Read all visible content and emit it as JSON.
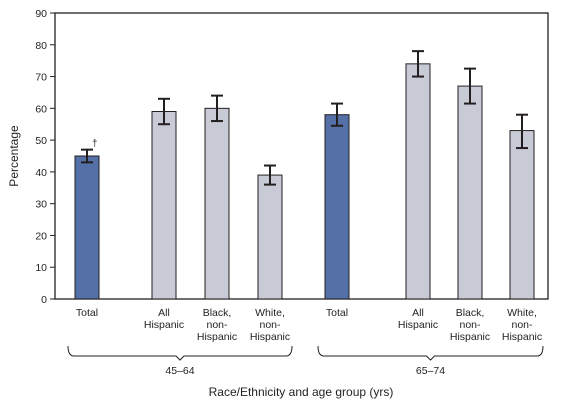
{
  "chart_data": {
    "type": "bar",
    "title": "",
    "xlabel": "Race/Ethnicity and age group (yrs)",
    "ylabel": "Percentage",
    "ylim": [
      0,
      90
    ],
    "yticks": [
      0,
      10,
      20,
      30,
      40,
      50,
      60,
      70,
      80,
      90
    ],
    "grid": false,
    "legend": "none",
    "groups": [
      {
        "label": "45–64",
        "bars": [
          {
            "label": [
              "Total"
            ],
            "value": 45,
            "ci": [
              43,
              47
            ],
            "kind": "total",
            "note": "†"
          },
          {
            "label": [
              "All",
              "Hispanic"
            ],
            "value": 59,
            "ci": [
              55,
              63
            ],
            "kind": "subgroup"
          },
          {
            "label": [
              "Black,",
              "non-",
              "Hispanic"
            ],
            "value": 60,
            "ci": [
              56,
              64
            ],
            "kind": "subgroup"
          },
          {
            "label": [
              "White,",
              "non-",
              "Hispanic"
            ],
            "value": 39,
            "ci": [
              36,
              42
            ],
            "kind": "subgroup"
          }
        ]
      },
      {
        "label": "65–74",
        "bars": [
          {
            "label": [
              "Total"
            ],
            "value": 58,
            "ci": [
              54.5,
              61.5
            ],
            "kind": "total"
          },
          {
            "label": [
              "All",
              "Hispanic"
            ],
            "value": 74,
            "ci": [
              70,
              78
            ],
            "kind": "subgroup"
          },
          {
            "label": [
              "Black,",
              "non-",
              "Hispanic"
            ],
            "value": 67,
            "ci": [
              61.5,
              72.5
            ],
            "kind": "subgroup"
          },
          {
            "label": [
              "White,",
              "non-",
              "Hispanic"
            ],
            "value": 53,
            "ci": [
              47.5,
              58
            ],
            "kind": "subgroup"
          }
        ]
      }
    ],
    "colors": {
      "total": "#5470a6",
      "subgroup": "#c8cad6",
      "bar_stroke": "#231f20",
      "axis": "#231f20"
    }
  }
}
